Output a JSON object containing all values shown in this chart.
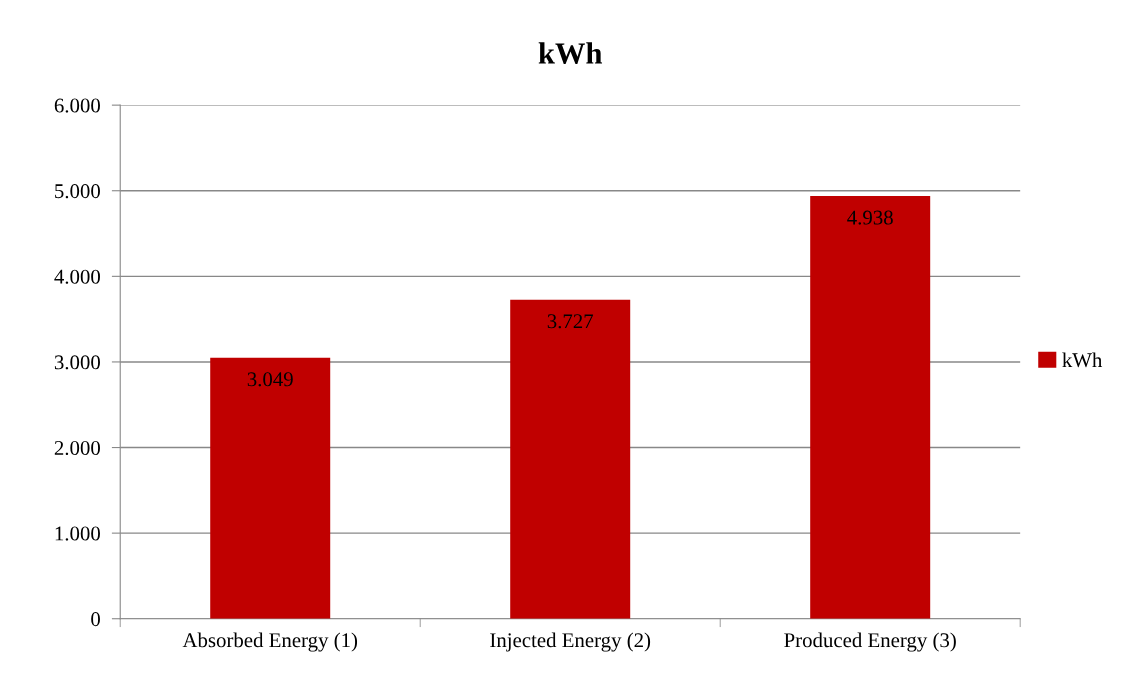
{
  "chart_data": {
    "type": "bar",
    "title": "kWh",
    "categories": [
      "Absorbed Energy (1)",
      "Injected Energy (2)",
      "Produced Energy (3)"
    ],
    "series": [
      {
        "name": "kWh",
        "color": "#c00000",
        "values": [
          3049,
          3727,
          4938
        ],
        "value_labels": [
          "3.049",
          "3.727",
          "4.938"
        ]
      }
    ],
    "ylim": [
      0,
      6000
    ],
    "yticks": [
      0,
      {
        "value": 1000,
        "label": "1.000"
      },
      {
        "value": 2000,
        "label": "2.000"
      },
      {
        "value": 3000,
        "label": "3.000"
      },
      {
        "value": 4000,
        "label": "4.000"
      },
      {
        "value": 5000,
        "label": "5.000"
      },
      {
        "value": 6000,
        "label": "6.000"
      }
    ],
    "grid": "y",
    "legend": "right"
  }
}
